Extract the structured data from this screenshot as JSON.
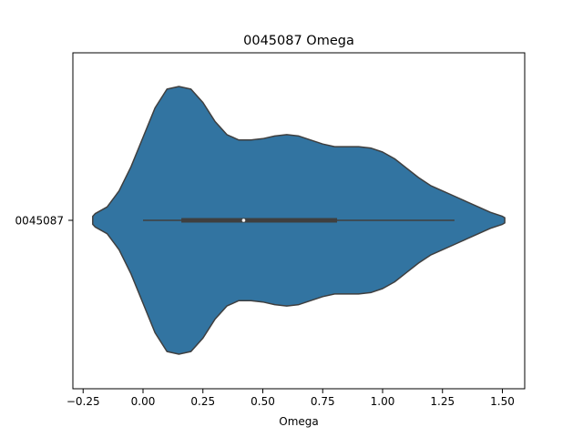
{
  "chart_data": {
    "type": "violin",
    "title": "0045087 Omega",
    "xlabel": "Omega",
    "ylabel": "",
    "category": "0045087",
    "xlim": [
      -0.25,
      1.55
    ],
    "x_ticks": [
      -0.25,
      0.0,
      0.25,
      0.5,
      0.75,
      1.0,
      1.25,
      1.5
    ],
    "x_tick_labels": [
      "−0.25",
      "0.00",
      "0.25",
      "0.50",
      "0.75",
      "1.00",
      "1.25",
      "1.50"
    ],
    "fill_color": "#3274a1",
    "edge_color": "#3f3f3f",
    "density_profile": {
      "x": [
        -0.21,
        -0.2,
        -0.15,
        -0.1,
        -0.05,
        0.0,
        0.05,
        0.1,
        0.15,
        0.2,
        0.25,
        0.3,
        0.35,
        0.4,
        0.45,
        0.5,
        0.55,
        0.6,
        0.65,
        0.7,
        0.75,
        0.8,
        0.85,
        0.9,
        0.95,
        1.0,
        1.05,
        1.1,
        1.15,
        1.2,
        1.25,
        1.3,
        1.35,
        1.4,
        1.45,
        1.5,
        1.51
      ],
      "half_width": [
        0.03,
        0.05,
        0.1,
        0.22,
        0.4,
        0.62,
        0.84,
        0.98,
        1.0,
        0.98,
        0.88,
        0.74,
        0.64,
        0.6,
        0.6,
        0.61,
        0.63,
        0.64,
        0.63,
        0.6,
        0.57,
        0.55,
        0.55,
        0.55,
        0.54,
        0.51,
        0.46,
        0.39,
        0.32,
        0.26,
        0.22,
        0.18,
        0.14,
        0.1,
        0.06,
        0.03,
        0.02
      ]
    },
    "box": {
      "whisker_low": 0.0,
      "q1": 0.16,
      "median": 0.42,
      "q3": 0.81,
      "whisker_high": 1.3
    },
    "grid": false,
    "legend": "none"
  }
}
